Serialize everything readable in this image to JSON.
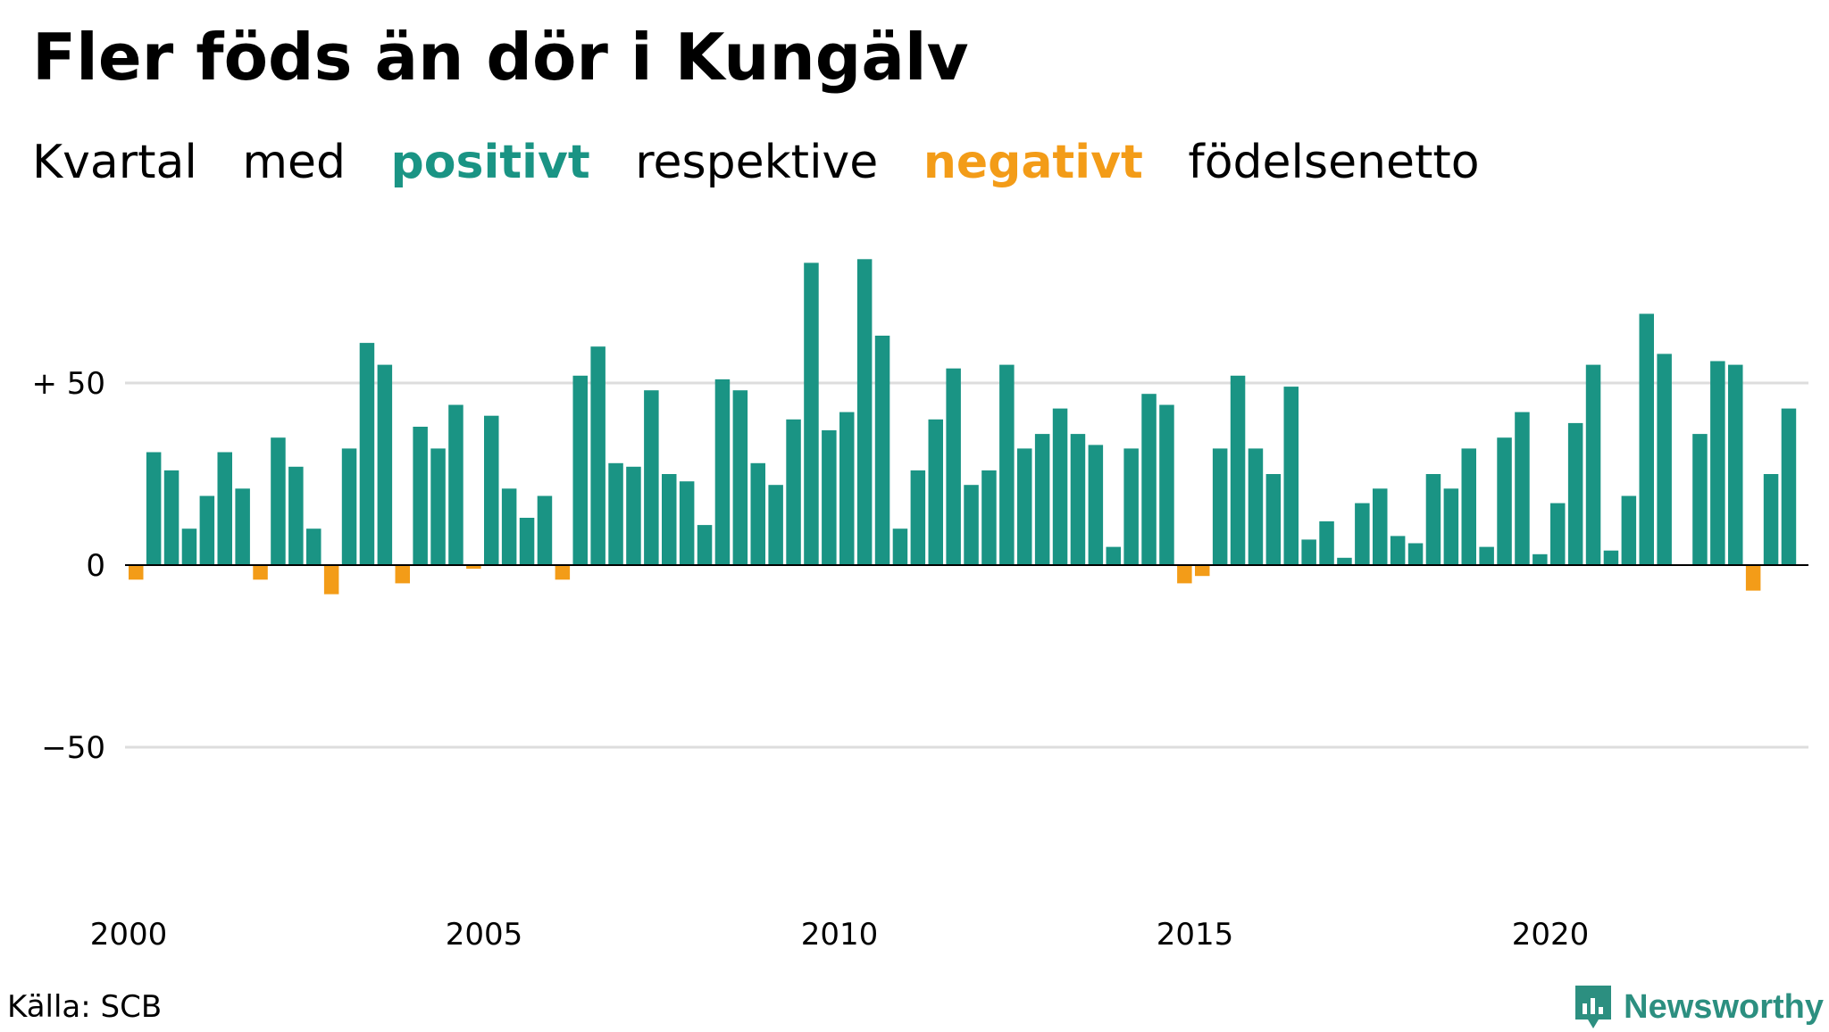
{
  "header": {
    "title": "Fler föds än dör i Kungälv",
    "subtitle_words": [
      "Kvartal",
      "med",
      "positivt",
      "respektive",
      "negativt",
      "födelsenetto"
    ]
  },
  "footer": {
    "source": "Källa: SCB",
    "brand": "Newsworthy"
  },
  "colors": {
    "positive": "#1a9484",
    "negative": "#f39c18",
    "grid": "#dddddd"
  },
  "chart_data": {
    "type": "bar",
    "x_start_year": 2000,
    "quarters_per_year": 4,
    "values": [
      -4,
      31,
      26,
      10,
      19,
      31,
      21,
      -4,
      35,
      27,
      10,
      -8,
      32,
      61,
      55,
      -5,
      38,
      32,
      44,
      -1,
      41,
      21,
      13,
      19,
      -4,
      52,
      60,
      28,
      27,
      48,
      25,
      23,
      11,
      51,
      48,
      28,
      22,
      40,
      83,
      37,
      42,
      84,
      63,
      10,
      26,
      40,
      54,
      22,
      26,
      55,
      32,
      36,
      43,
      36,
      33,
      5,
      32,
      47,
      44,
      -5,
      -3,
      32,
      52,
      32,
      25,
      49,
      7,
      12,
      2,
      17,
      21,
      8,
      6,
      25,
      21,
      32,
      5,
      35,
      42,
      3,
      17,
      39,
      55,
      4,
      19,
      69,
      58,
      0,
      36,
      56,
      55,
      -7,
      25,
      43
    ],
    "y_ticks": [
      {
        "value": 50,
        "label": "+ 50"
      },
      {
        "value": 0,
        "label": "0"
      },
      {
        "value": -50,
        "label": "−50"
      }
    ],
    "x_ticks": [
      {
        "year": 2000,
        "label": "2000"
      },
      {
        "year": 2005,
        "label": "2005"
      },
      {
        "year": 2010,
        "label": "2010"
      },
      {
        "year": 2015,
        "label": "2015"
      },
      {
        "year": 2020,
        "label": "2020"
      }
    ],
    "ylim": [
      -85,
      85
    ],
    "grid": true
  }
}
